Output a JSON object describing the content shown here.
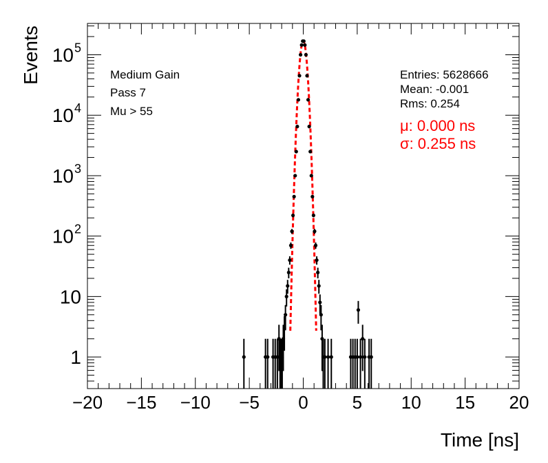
{
  "chart_data": {
    "type": "scatter",
    "title": "",
    "xlabel": "Time [ns]",
    "ylabel": "Events",
    "xlim": [
      -20,
      20
    ],
    "ylim": [
      0.3,
      330000
    ],
    "yscale": "log",
    "x_ticks": [
      "−20",
      "−15",
      "−10",
      "−5",
      "0",
      "5",
      "10",
      "15",
      "20"
    ],
    "x_tick_values": [
      -20,
      -15,
      -10,
      -5,
      0,
      5,
      10,
      15,
      20
    ],
    "y_ticks": [
      {
        "value": 1,
        "base": "1",
        "exp": ""
      },
      {
        "value": 10,
        "base": "10",
        "exp": ""
      },
      {
        "value": 100,
        "base": "10",
        "exp": "2"
      },
      {
        "value": 1000,
        "base": "10",
        "exp": "3"
      },
      {
        "value": 10000,
        "base": "10",
        "exp": "4"
      },
      {
        "value": 100000,
        "base": "10",
        "exp": "5"
      }
    ],
    "labels": {
      "line1": "Medium Gain",
      "line2": "Pass 7",
      "line3": "Mu > 55"
    },
    "stats": {
      "entries": "Entries: 5628666",
      "mean": "Mean: -0.001",
      "rms": "Rms: 0.254"
    },
    "fit": {
      "mu_text": "μ: 0.000 ns",
      "sigma_text": "σ: 0.255 ns",
      "mu": 0.0,
      "sigma": 0.255,
      "amplitude": 170000,
      "color": "#ff0000"
    },
    "series": [
      {
        "points": [
          {
            "x": -5.5,
            "y": 1
          },
          {
            "x": -3.5,
            "y": 1
          },
          {
            "x": -3.3,
            "y": 1
          },
          {
            "x": -2.8,
            "y": 1
          },
          {
            "x": -2.6,
            "y": 1
          },
          {
            "x": -2.4,
            "y": 1
          },
          {
            "x": -2.25,
            "y": 2
          },
          {
            "x": -2.15,
            "y": 1
          },
          {
            "x": -2.05,
            "y": 1
          },
          {
            "x": -1.95,
            "y": 1
          },
          {
            "x": -1.85,
            "y": 2
          },
          {
            "x": -1.75,
            "y": 3
          },
          {
            "x": -1.65,
            "y": 5
          },
          {
            "x": -1.55,
            "y": 10
          },
          {
            "x": -1.45,
            "y": 15
          },
          {
            "x": -1.35,
            "y": 25
          },
          {
            "x": -1.25,
            "y": 40
          },
          {
            "x": -1.15,
            "y": 70
          },
          {
            "x": -1.05,
            "y": 120
          },
          {
            "x": -0.95,
            "y": 220
          },
          {
            "x": -0.85,
            "y": 450
          },
          {
            "x": -0.75,
            "y": 1000
          },
          {
            "x": -0.65,
            "y": 2500
          },
          {
            "x": -0.55,
            "y": 6500
          },
          {
            "x": -0.45,
            "y": 18000
          },
          {
            "x": -0.35,
            "y": 45000
          },
          {
            "x": -0.25,
            "y": 100000
          },
          {
            "x": -0.15,
            "y": 145000
          },
          {
            "x": -0.05,
            "y": 168000
          },
          {
            "x": 0.05,
            "y": 168000
          },
          {
            "x": 0.15,
            "y": 145000
          },
          {
            "x": 0.25,
            "y": 100000
          },
          {
            "x": 0.35,
            "y": 45000
          },
          {
            "x": 0.45,
            "y": 18000
          },
          {
            "x": 0.55,
            "y": 6500
          },
          {
            "x": 0.65,
            "y": 2500
          },
          {
            "x": 0.75,
            "y": 1000
          },
          {
            "x": 0.85,
            "y": 450
          },
          {
            "x": 0.95,
            "y": 220
          },
          {
            "x": 1.05,
            "y": 120
          },
          {
            "x": 1.15,
            "y": 70
          },
          {
            "x": 1.25,
            "y": 40
          },
          {
            "x": 1.35,
            "y": 25
          },
          {
            "x": 1.45,
            "y": 15
          },
          {
            "x": 1.55,
            "y": 8
          },
          {
            "x": 1.65,
            "y": 5
          },
          {
            "x": 1.75,
            "y": 2
          },
          {
            "x": 1.85,
            "y": 1
          },
          {
            "x": 2.0,
            "y": 1
          },
          {
            "x": 2.3,
            "y": 1
          },
          {
            "x": 2.6,
            "y": 1
          },
          {
            "x": 4.4,
            "y": 1
          },
          {
            "x": 4.6,
            "y": 1
          },
          {
            "x": 4.8,
            "y": 1
          },
          {
            "x": 5.0,
            "y": 1
          },
          {
            "x": 5.1,
            "y": 6
          },
          {
            "x": 5.3,
            "y": 1
          },
          {
            "x": 5.5,
            "y": 2
          },
          {
            "x": 5.7,
            "y": 1
          },
          {
            "x": 6.1,
            "y": 1
          },
          {
            "x": 6.3,
            "y": 1
          }
        ]
      }
    ]
  }
}
